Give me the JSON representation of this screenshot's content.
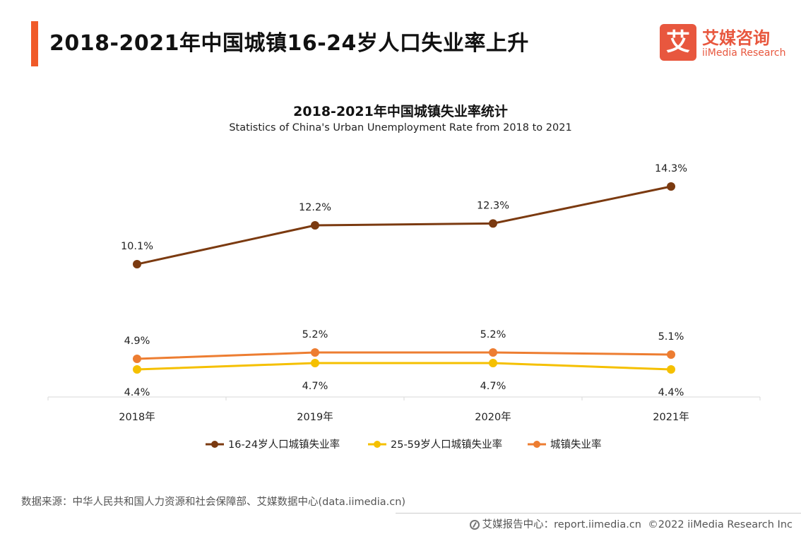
{
  "header": {
    "title": "2018-2021年中国城镇16-24岁人口失业率上升",
    "logo_mark": "艾",
    "logo_cn": "艾媒咨询",
    "logo_en": "iiMedia Research",
    "accent_color": "#f05a28",
    "logo_color": "#e8573e"
  },
  "chart_data": {
    "type": "line",
    "title": "2018-2021年中国城镇失业率统计",
    "subtitle": "Statistics of China's Urban Unemployment Rate from 2018 to 2021",
    "categories": [
      "2018年",
      "2019年",
      "2020年",
      "2021年"
    ],
    "unit": "%",
    "series": [
      {
        "name": "16-24岁人口城镇失业率",
        "values": [
          10.1,
          12.2,
          12.3,
          14.3
        ],
        "color": "#7b3a10",
        "label_position": "above"
      },
      {
        "name": "25-59岁人口城镇失业率",
        "values": [
          4.4,
          4.7,
          4.7,
          4.4
        ],
        "color": "#f5c000",
        "label_position": "below"
      },
      {
        "name": "城镇失业率",
        "values": [
          4.9,
          5.2,
          5.2,
          5.1
        ],
        "color": "#ed7d31",
        "label_position": "above"
      }
    ],
    "legend_position": "bottom",
    "grid": false
  },
  "footer": {
    "source": "数据来源：中华人民共和国人力资源和社会保障部、艾媒数据中心(data.iimedia.cn)",
    "report_site": "艾媒报告中心：report.iimedia.cn",
    "copyright": "©2022  iiMedia Research  Inc"
  }
}
